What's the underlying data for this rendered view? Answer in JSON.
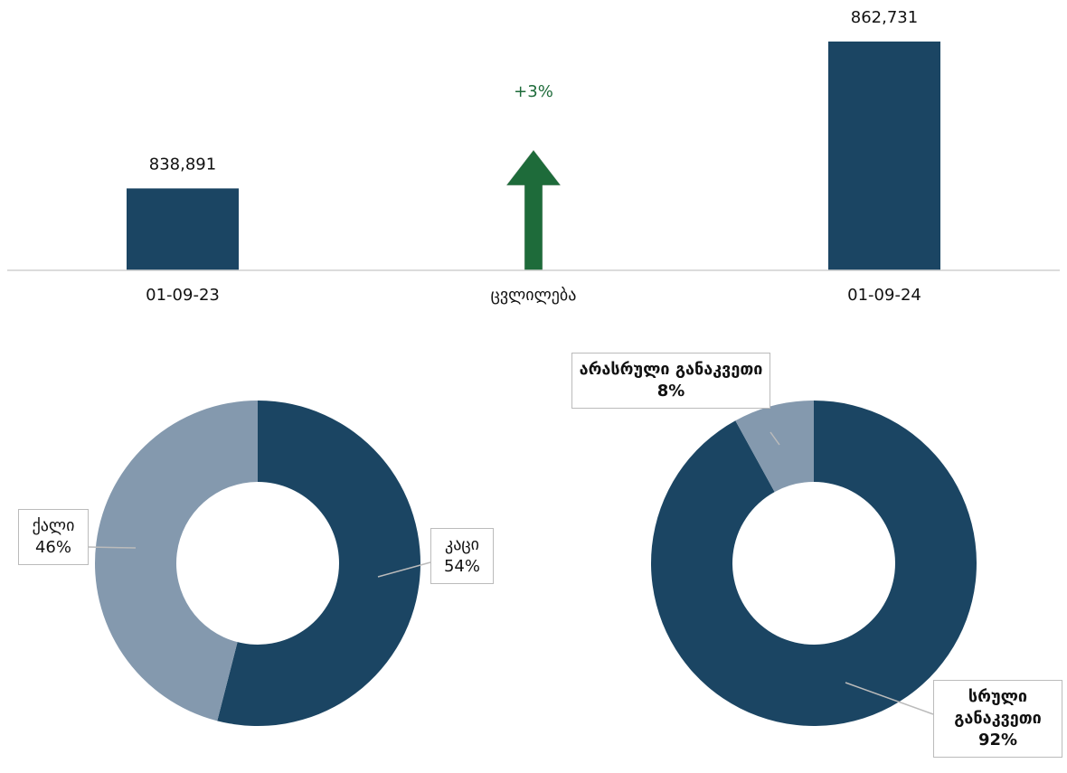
{
  "chart_data": [
    {
      "type": "bar",
      "categories": [
        "01-09-23",
        "ცვლილება",
        "01-09-24"
      ],
      "values": [
        838891,
        null,
        862731
      ],
      "value_labels": [
        "838,891",
        null,
        "862,731"
      ],
      "color": "#1b4563",
      "ylim": [
        825600,
        868000
      ],
      "change": 3,
      "change_label": "+3%",
      "change_color": "#1e6b3a"
    },
    {
      "type": "donut",
      "categories": [
        "კაცი",
        "ქალი"
      ],
      "values": [
        54,
        46
      ],
      "value_labels": [
        "54%",
        "46%"
      ],
      "colors": [
        "#1b4563",
        "#8499ae"
      ]
    },
    {
      "type": "donut",
      "categories": [
        "სრული განაკვეთი",
        "არასრული განაკვეთი"
      ],
      "values": [
        92,
        8
      ],
      "value_labels": [
        "92%",
        "8%"
      ],
      "colors": [
        "#1b4563",
        "#8499ae"
      ]
    }
  ]
}
